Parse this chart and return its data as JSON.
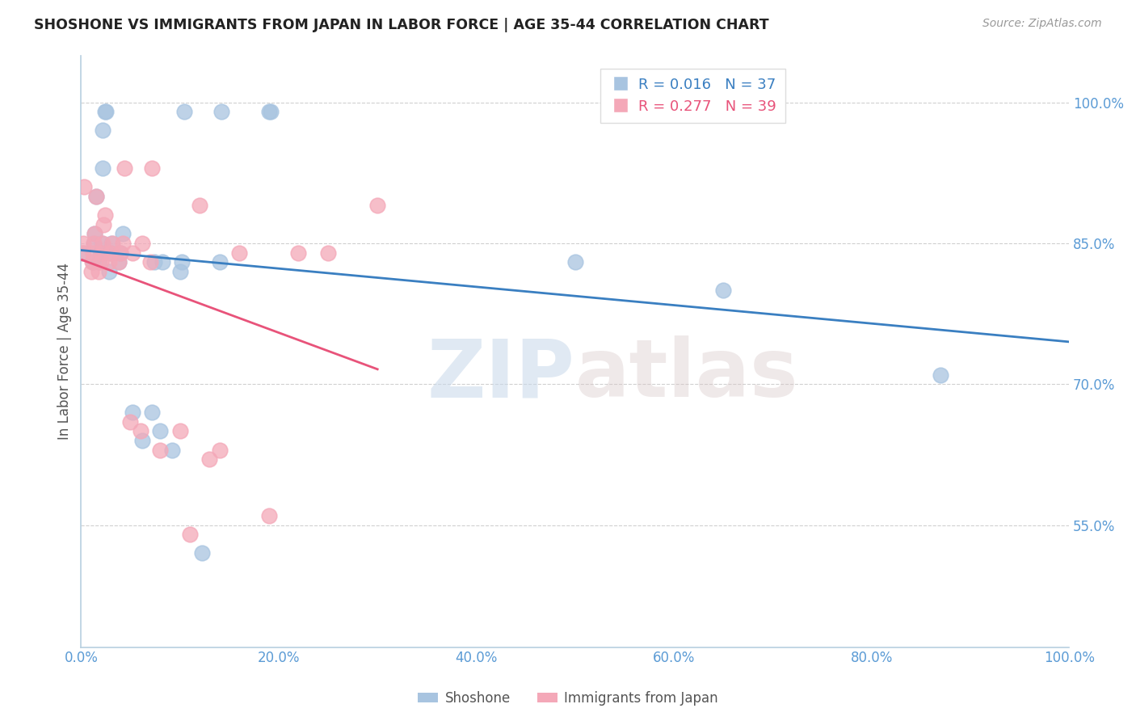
{
  "title": "SHOSHONE VS IMMIGRANTS FROM JAPAN IN LABOR FORCE | AGE 35-44 CORRELATION CHART",
  "source": "Source: ZipAtlas.com",
  "ylabel": "In Labor Force | Age 35-44",
  "xlim": [
    0.0,
    1.0
  ],
  "ylim": [
    0.42,
    1.05
  ],
  "yticks": [
    0.55,
    0.7,
    0.85,
    1.0
  ],
  "ytick_labels": [
    "55.0%",
    "70.0%",
    "85.0%",
    "100.0%"
  ],
  "xtick_labels": [
    "0.0%",
    "20.0%",
    "40.0%",
    "60.0%",
    "80.0%",
    "100.0%"
  ],
  "xticks": [
    0.0,
    0.2,
    0.4,
    0.6,
    0.8,
    1.0
  ],
  "shoshone_x": [
    0.002,
    0.012,
    0.013,
    0.014,
    0.015,
    0.018,
    0.019,
    0.02,
    0.021,
    0.022,
    0.022,
    0.024,
    0.025,
    0.028,
    0.03,
    0.031,
    0.038,
    0.04,
    0.042,
    0.052,
    0.062,
    0.072,
    0.074,
    0.08,
    0.082,
    0.092,
    0.1,
    0.102,
    0.104,
    0.122,
    0.14,
    0.142,
    0.19,
    0.192,
    0.5,
    0.65,
    0.87
  ],
  "shoshone_y": [
    0.84,
    0.83,
    0.85,
    0.86,
    0.9,
    0.83,
    0.84,
    0.84,
    0.85,
    0.93,
    0.97,
    0.99,
    0.99,
    0.82,
    0.84,
    0.85,
    0.83,
    0.84,
    0.86,
    0.67,
    0.64,
    0.67,
    0.83,
    0.65,
    0.83,
    0.63,
    0.82,
    0.83,
    0.99,
    0.52,
    0.83,
    0.99,
    0.99,
    0.99,
    0.83,
    0.8,
    0.71
  ],
  "japan_x": [
    0.001,
    0.002,
    0.003,
    0.01,
    0.011,
    0.012,
    0.013,
    0.014,
    0.015,
    0.018,
    0.02,
    0.021,
    0.022,
    0.023,
    0.024,
    0.028,
    0.03,
    0.032,
    0.038,
    0.04,
    0.042,
    0.044,
    0.05,
    0.052,
    0.06,
    0.062,
    0.07,
    0.072,
    0.08,
    0.1,
    0.11,
    0.12,
    0.13,
    0.14,
    0.16,
    0.19,
    0.22,
    0.25,
    0.3
  ],
  "japan_y": [
    0.84,
    0.85,
    0.91,
    0.82,
    0.83,
    0.84,
    0.85,
    0.86,
    0.9,
    0.82,
    0.83,
    0.84,
    0.85,
    0.87,
    0.88,
    0.83,
    0.84,
    0.85,
    0.83,
    0.84,
    0.85,
    0.93,
    0.66,
    0.84,
    0.65,
    0.85,
    0.83,
    0.93,
    0.63,
    0.65,
    0.54,
    0.89,
    0.62,
    0.63,
    0.84,
    0.56,
    0.84,
    0.84,
    0.89
  ],
  "shoshone_line_color": "#3a7fc1",
  "japan_line_color": "#e8537a",
  "shoshone_scatter_color": "#a8c4e0",
  "japan_scatter_color": "#f4a8b8",
  "grid_color": "#d0d0d0",
  "axis_color": "#b8cfe0",
  "label_color": "#5b9bd5",
  "background_color": "#ffffff",
  "watermark_zip": "ZIP",
  "watermark_atlas": "atlas",
  "R_shoshone": 0.016,
  "N_shoshone": 37,
  "R_japan": 0.277,
  "N_japan": 39
}
